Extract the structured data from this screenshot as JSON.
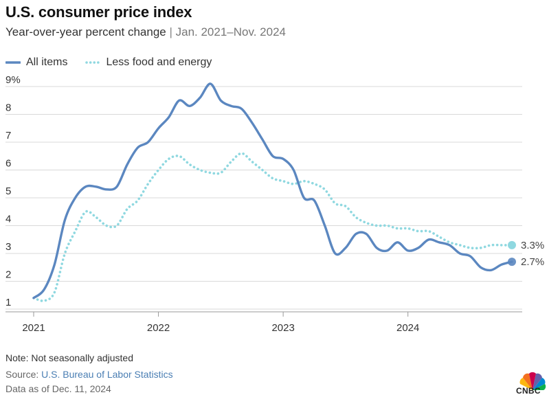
{
  "title": "U.S. consumer price index",
  "subtitle_main": "Year-over-year percent change",
  "subtitle_sep": "|",
  "subtitle_range": "Jan. 2021–Nov. 2024",
  "footer": {
    "note": "Note: Not seasonally adjusted",
    "source_prefix": "Source: ",
    "source_link": "U.S. Bureau of Labor Statistics",
    "as_of": "Data as of Dec. 11, 2024",
    "logo_text": "CNBC"
  },
  "colors": {
    "all_items": "#5b87c0",
    "core": "#8fd8e0",
    "grid": "#d9d9d9"
  },
  "chart_data": {
    "type": "line",
    "x_start": "2021-01",
    "x_end": "2024-11",
    "x_tick_labels": [
      "2021",
      "2022",
      "2023",
      "2024"
    ],
    "y_tick_labels": [
      "9%",
      "8",
      "7",
      "6",
      "5",
      "4",
      "3",
      "2",
      "1"
    ],
    "y_ticks": [
      9,
      8,
      7,
      6,
      5,
      4,
      3,
      2,
      1
    ],
    "ylim": [
      1,
      9
    ],
    "grid": true,
    "legend_position": "top-left",
    "series": [
      {
        "name": "All items",
        "style": "solid",
        "end_label": "2.7%",
        "values": [
          1.4,
          1.7,
          2.6,
          4.2,
          5.0,
          5.4,
          5.4,
          5.3,
          5.4,
          6.2,
          6.8,
          7.0,
          7.5,
          7.9,
          8.5,
          8.3,
          8.6,
          9.1,
          8.5,
          8.3,
          8.2,
          7.7,
          7.1,
          6.5,
          6.4,
          6.0,
          5.0,
          4.9,
          4.0,
          3.0,
          3.2,
          3.7,
          3.7,
          3.2,
          3.1,
          3.4,
          3.1,
          3.2,
          3.5,
          3.4,
          3.3,
          3.0,
          2.9,
          2.5,
          2.4,
          2.6,
          2.7
        ]
      },
      {
        "name": "Less food and energy",
        "style": "dotted",
        "end_label": "3.3%",
        "values": [
          1.4,
          1.3,
          1.6,
          3.0,
          3.8,
          4.5,
          4.3,
          4.0,
          4.0,
          4.6,
          4.9,
          5.5,
          6.0,
          6.4,
          6.5,
          6.2,
          6.0,
          5.9,
          5.9,
          6.3,
          6.6,
          6.3,
          6.0,
          5.7,
          5.6,
          5.5,
          5.6,
          5.5,
          5.3,
          4.8,
          4.7,
          4.3,
          4.1,
          4.0,
          4.0,
          3.9,
          3.9,
          3.8,
          3.8,
          3.6,
          3.4,
          3.3,
          3.2,
          3.2,
          3.3,
          3.3,
          3.3
        ]
      }
    ]
  }
}
